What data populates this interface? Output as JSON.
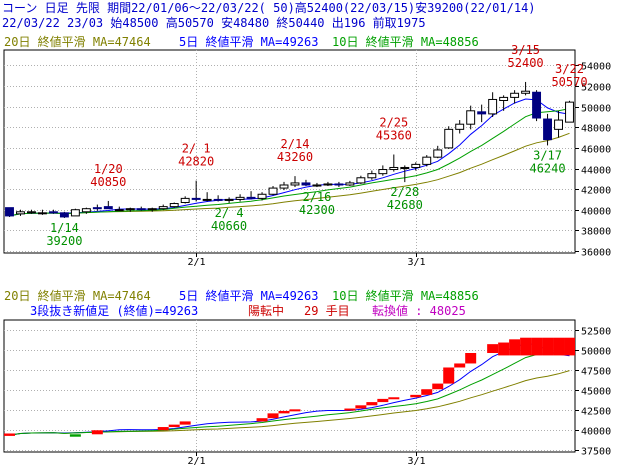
{
  "header": {
    "line1": "コーン 日足 先限 期間22/01/06～22/03/22( 50)高52400(22/03/15)安39200(22/01/14)",
    "line2": "22/03/22 23/03 始48500 高50570 安48480 終50440 出196 前取1975"
  },
  "legend": {
    "ma20": "20日 終値平滑 MA=47464",
    "ma5": "5日 終値平滑 MA=49263",
    "ma10": "10日 終値平滑 MA=48856",
    "kagi_info": "3段抜き新値足 (終値)=49263",
    "kagi_state": "陽転中",
    "kagi_count": "29 手目",
    "kagi_turn": "転換値 : 48025"
  },
  "colors": {
    "ma20": "#808000",
    "ma5": "#0000ff",
    "ma10": "#00a000",
    "up_label": "#cc0000",
    "down_label": "#009000",
    "candle_down": "#000080",
    "brick_up": "#ff0000",
    "brick_down": "#00a000",
    "grid": "#b0b0b0",
    "magenta": "#c000c0"
  },
  "chart_data": [
    {
      "type": "candlestick",
      "title": "コーン 日足 先限",
      "x_ticks": [
        "2/1",
        "3/1"
      ],
      "y_ticks": [
        36000,
        38000,
        40000,
        42000,
        44000,
        46000,
        48000,
        50000,
        52000,
        54000
      ],
      "ylim": [
        35800,
        55500
      ],
      "grid": true,
      "candles": [
        {
          "date": "1/6",
          "open": 40200,
          "high": 40200,
          "low": 39300,
          "close": 39400
        },
        {
          "date": "1/7",
          "open": 39600,
          "high": 40000,
          "low": 39400,
          "close": 39800
        },
        {
          "date": "1/11",
          "open": 39700,
          "high": 40000,
          "low": 39600,
          "close": 39800
        },
        {
          "date": "1/12",
          "open": 39700,
          "high": 40000,
          "low": 39500,
          "close": 39700
        },
        {
          "date": "1/13",
          "open": 39800,
          "high": 40000,
          "low": 39600,
          "close": 39700
        },
        {
          "date": "1/14",
          "open": 39700,
          "high": 39800,
          "low": 39200,
          "close": 39300
        },
        {
          "date": "1/17",
          "open": 39400,
          "high": 40100,
          "low": 39400,
          "close": 40000
        },
        {
          "date": "1/18",
          "open": 39800,
          "high": 40200,
          "low": 39600,
          "close": 40100
        },
        {
          "date": "1/19",
          "open": 40200,
          "high": 40500,
          "low": 39900,
          "close": 40100
        },
        {
          "date": "1/20",
          "open": 40300,
          "high": 40850,
          "low": 40100,
          "close": 40100
        },
        {
          "date": "1/21",
          "open": 40000,
          "high": 40300,
          "low": 39900,
          "close": 40000
        },
        {
          "date": "1/24",
          "open": 40000,
          "high": 40200,
          "low": 39800,
          "close": 40100
        },
        {
          "date": "1/25",
          "open": 40100,
          "high": 40300,
          "low": 39900,
          "close": 40000
        },
        {
          "date": "1/26",
          "open": 40000,
          "high": 40200,
          "low": 39800,
          "close": 40100
        },
        {
          "date": "1/27",
          "open": 40100,
          "high": 40500,
          "low": 40000,
          "close": 40300
        },
        {
          "date": "1/28",
          "open": 40300,
          "high": 40700,
          "low": 40200,
          "close": 40600
        },
        {
          "date": "1/31",
          "open": 40700,
          "high": 41300,
          "low": 40600,
          "close": 41100
        },
        {
          "date": "2/1",
          "open": 41100,
          "high": 42820,
          "low": 40800,
          "close": 41000
        },
        {
          "date": "2/2",
          "open": 41000,
          "high": 41700,
          "low": 40800,
          "close": 41000
        },
        {
          "date": "2/3",
          "open": 41000,
          "high": 41400,
          "low": 40800,
          "close": 40900
        },
        {
          "date": "2/4",
          "open": 40900,
          "high": 41200,
          "low": 40660,
          "close": 41000
        },
        {
          "date": "2/7",
          "open": 41000,
          "high": 41500,
          "low": 40800,
          "close": 41200
        },
        {
          "date": "2/8",
          "open": 41200,
          "high": 41800,
          "low": 41000,
          "close": 41100
        },
        {
          "date": "2/9",
          "open": 41100,
          "high": 41700,
          "low": 40900,
          "close": 41500
        },
        {
          "date": "2/10",
          "open": 41500,
          "high": 42300,
          "low": 41400,
          "close": 42100
        },
        {
          "date": "2/11",
          "open": 42100,
          "high": 42700,
          "low": 41900,
          "close": 42400
        },
        {
          "date": "2/14",
          "open": 42400,
          "high": 43260,
          "low": 42200,
          "close": 42600
        },
        {
          "date": "2/15",
          "open": 42600,
          "high": 42900,
          "low": 42300,
          "close": 42400
        },
        {
          "date": "2/16",
          "open": 42300,
          "high": 42600,
          "low": 42200,
          "close": 42400
        },
        {
          "date": "2/17",
          "open": 42400,
          "high": 42700,
          "low": 42300,
          "close": 42500
        },
        {
          "date": "2/18",
          "open": 42500,
          "high": 42700,
          "low": 42200,
          "close": 42400
        },
        {
          "date": "2/21",
          "open": 42400,
          "high": 42800,
          "low": 42300,
          "close": 42600
        },
        {
          "date": "2/22",
          "open": 42600,
          "high": 43300,
          "low": 42500,
          "close": 43100
        },
        {
          "date": "2/23",
          "open": 43100,
          "high": 43800,
          "low": 42900,
          "close": 43500
        },
        {
          "date": "2/24",
          "open": 43500,
          "high": 44300,
          "low": 43300,
          "close": 43900
        },
        {
          "date": "2/25",
          "open": 43900,
          "high": 45360,
          "low": 43700,
          "close": 44100
        },
        {
          "date": "2/28",
          "open": 44000,
          "high": 44300,
          "low": 42680,
          "close": 44100
        },
        {
          "date": "3/1",
          "open": 44100,
          "high": 44600,
          "low": 43800,
          "close": 44400
        },
        {
          "date": "3/2",
          "open": 44400,
          "high": 45300,
          "low": 44200,
          "close": 45100
        },
        {
          "date": "3/3",
          "open": 45100,
          "high": 46200,
          "low": 45000,
          "close": 45800
        },
        {
          "date": "3/4",
          "open": 46000,
          "high": 48100,
          "low": 45900,
          "close": 47800
        },
        {
          "date": "3/7",
          "open": 47800,
          "high": 48700,
          "low": 47400,
          "close": 48300
        },
        {
          "date": "3/8",
          "open": 48300,
          "high": 50100,
          "low": 47800,
          "close": 49600
        },
        {
          "date": "3/9",
          "open": 49500,
          "high": 50200,
          "low": 48500,
          "close": 49300
        },
        {
          "date": "3/10",
          "open": 49300,
          "high": 51400,
          "low": 49000,
          "close": 50700
        },
        {
          "date": "3/11",
          "open": 50600,
          "high": 51100,
          "low": 49600,
          "close": 50900
        },
        {
          "date": "3/14",
          "open": 50900,
          "high": 51600,
          "low": 50300,
          "close": 51300
        },
        {
          "date": "3/15",
          "open": 51300,
          "high": 52400,
          "low": 51100,
          "close": 51500
        },
        {
          "date": "3/16",
          "open": 51400,
          "high": 51600,
          "low": 48600,
          "close": 48900
        },
        {
          "date": "3/17",
          "open": 48800,
          "high": 49300,
          "low": 46240,
          "close": 46800
        },
        {
          "date": "3/18",
          "open": 47800,
          "high": 49600,
          "low": 47000,
          "close": 48700
        },
        {
          "date": "3/22",
          "open": 48500,
          "high": 50570,
          "low": 48480,
          "close": 50440
        }
      ],
      "annotations": [
        {
          "date": "1/14",
          "text": "1/14",
          "value": "39200",
          "kind": "low"
        },
        {
          "date": "1/20",
          "text": "1/20",
          "value": "40850",
          "kind": "high"
        },
        {
          "date": "2/1",
          "text": "2/ 1",
          "value": "42820",
          "kind": "high"
        },
        {
          "date": "2/4",
          "text": "2/ 4",
          "value": "40660",
          "kind": "low"
        },
        {
          "date": "2/14",
          "text": "2/14",
          "value": "43260",
          "kind": "high"
        },
        {
          "date": "2/16",
          "text": "2/16",
          "value": "42300",
          "kind": "low"
        },
        {
          "date": "2/25",
          "text": "2/25",
          "value": "45360",
          "kind": "high"
        },
        {
          "date": "2/28",
          "text": "2/28",
          "value": "42680",
          "kind": "low"
        },
        {
          "date": "3/15",
          "text": "3/15",
          "value": "52400",
          "kind": "high"
        },
        {
          "date": "3/17",
          "text": "3/17",
          "value": "46240",
          "kind": "low"
        },
        {
          "date": "3/22",
          "text": "3/22",
          "value": "50570",
          "kind": "high"
        }
      ],
      "moving_averages": [
        {
          "name": "20日 終値平滑",
          "period": 20,
          "color_key": "ma20"
        },
        {
          "name": "5日 終値平滑",
          "period": 5,
          "color_key": "ma5"
        },
        {
          "name": "10日 終値平滑",
          "period": 10,
          "color_key": "ma10"
        }
      ]
    },
    {
      "type": "kagi-bricks",
      "title": "3段抜き新値足 (終値)",
      "x_ticks": [
        "2/1",
        "3/1"
      ],
      "y_ticks": [
        37500,
        40000,
        42500,
        45000,
        47500,
        50000,
        52500
      ],
      "ylim": [
        37300,
        53700
      ],
      "grid": true,
      "bricks": [
        {
          "date": "1/6",
          "low": 39300,
          "high": 39600,
          "dir": "up"
        },
        {
          "date": "1/17",
          "low": 39200,
          "high": 39500,
          "dir": "down"
        },
        {
          "date": "1/19",
          "low": 39500,
          "high": 40000,
          "dir": "up"
        },
        {
          "date": "1/27",
          "low": 40000,
          "high": 40400,
          "dir": "up"
        },
        {
          "date": "1/28",
          "low": 40400,
          "high": 40700,
          "dir": "up"
        },
        {
          "date": "1/31",
          "low": 40700,
          "high": 41100,
          "dir": "up"
        },
        {
          "date": "2/9",
          "low": 41100,
          "high": 41500,
          "dir": "up"
        },
        {
          "date": "2/10",
          "low": 41500,
          "high": 42100,
          "dir": "up"
        },
        {
          "date": "2/11",
          "low": 42100,
          "high": 42400,
          "dir": "up"
        },
        {
          "date": "2/14",
          "low": 42400,
          "high": 42600,
          "dir": "up"
        },
        {
          "date": "2/21",
          "low": 42600,
          "high": 42700,
          "dir": "up"
        },
        {
          "date": "2/22",
          "low": 42700,
          "high": 43100,
          "dir": "up"
        },
        {
          "date": "2/23",
          "low": 43100,
          "high": 43500,
          "dir": "up"
        },
        {
          "date": "2/24",
          "low": 43500,
          "high": 43900,
          "dir": "up"
        },
        {
          "date": "2/25",
          "low": 43900,
          "high": 44100,
          "dir": "up"
        },
        {
          "date": "3/1",
          "low": 44100,
          "high": 44400,
          "dir": "up"
        },
        {
          "date": "3/2",
          "low": 44400,
          "high": 45100,
          "dir": "up"
        },
        {
          "date": "3/3",
          "low": 45100,
          "high": 45800,
          "dir": "up"
        },
        {
          "date": "3/4",
          "low": 45800,
          "high": 47800,
          "dir": "up"
        },
        {
          "date": "3/7",
          "low": 47800,
          "high": 48300,
          "dir": "up"
        },
        {
          "date": "3/8",
          "low": 48300,
          "high": 49600,
          "dir": "up"
        },
        {
          "date": "3/10",
          "low": 49600,
          "high": 50700,
          "dir": "up"
        },
        {
          "date": "3/11",
          "low": 49300,
          "high": 50900,
          "dir": "up"
        },
        {
          "date": "3/14",
          "low": 49300,
          "high": 51300,
          "dir": "up"
        },
        {
          "date": "3/15",
          "low": 49300,
          "high": 51500,
          "dir": "up"
        },
        {
          "date": "3/16",
          "low": 49300,
          "high": 51500,
          "dir": "up"
        },
        {
          "date": "3/17",
          "low": 49300,
          "high": 51500,
          "dir": "up"
        },
        {
          "date": "3/18",
          "low": 49300,
          "high": 51500,
          "dir": "up"
        },
        {
          "date": "3/22",
          "low": 49300,
          "high": 51500,
          "dir": "up"
        }
      ]
    }
  ]
}
